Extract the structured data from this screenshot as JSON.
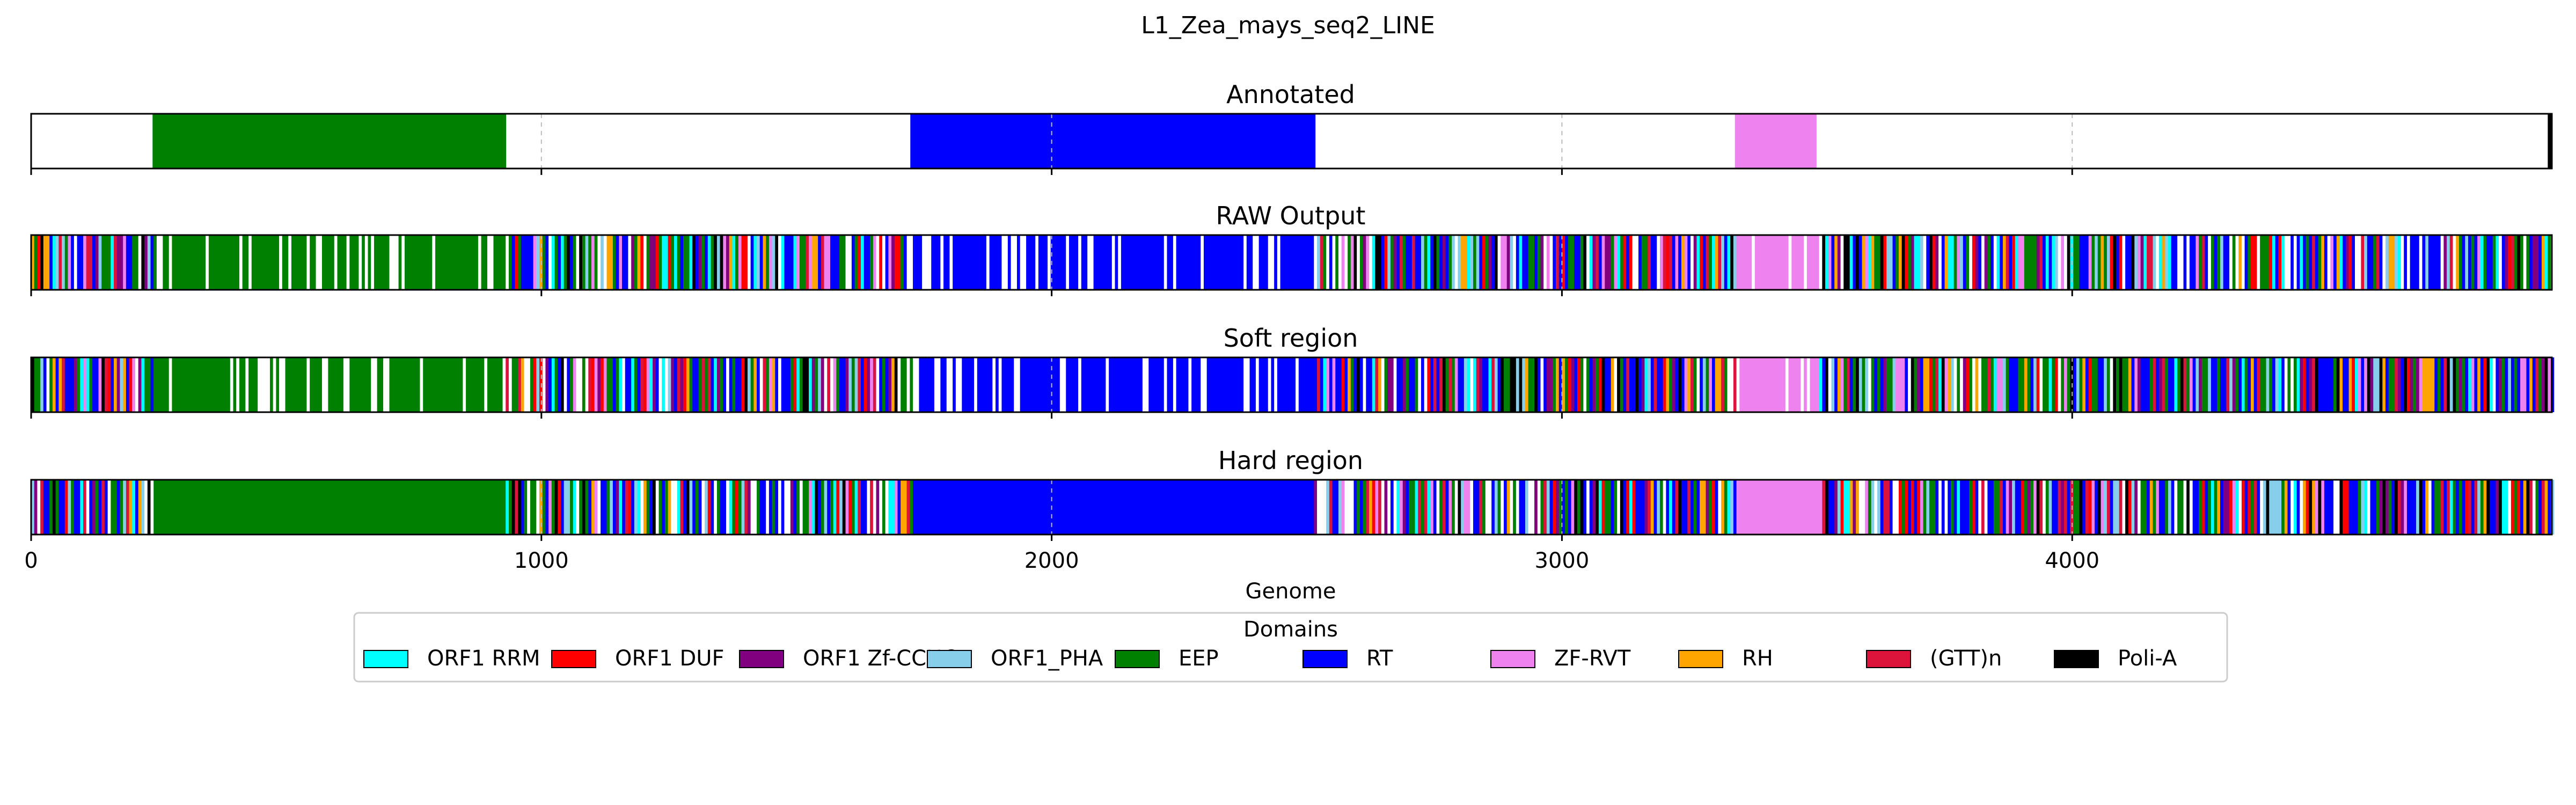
{
  "chart_data": {
    "type": "genome-track",
    "title": "L1_Zea_mays_seq2_LINE",
    "xlabel": "Genome",
    "xlim": [
      0,
      4940
    ],
    "xticks": [
      0,
      1000,
      2000,
      3000,
      4000
    ],
    "xtick_labels": [
      "0",
      "1000",
      "2000",
      "3000",
      "4000"
    ],
    "dashed_vertical_guides": [
      1000,
      2000,
      3000,
      4000
    ],
    "legend": {
      "title": "Domains",
      "placement": "lower-center",
      "entries": [
        {
          "label": "ORF1 RRM",
          "color": "#00ffff"
        },
        {
          "label": "ORF1 DUF",
          "color": "#ff0000"
        },
        {
          "label": "ORF1 Zf-CCHC",
          "color": "#800080"
        },
        {
          "label": "ORF1_PHA",
          "color": "#87ceeb"
        },
        {
          "label": "EEP",
          "color": "#008000"
        },
        {
          "label": "RT",
          "color": "#0000ff"
        },
        {
          "label": "ZF-RVT",
          "color": "#ee82ee"
        },
        {
          "label": "RH",
          "color": "#ffa500"
        },
        {
          "label": "(GTT)n",
          "color": "#dc143c"
        },
        {
          "label": "Poli-A",
          "color": "#000000"
        }
      ]
    },
    "tracks": [
      {
        "title": "Annotated",
        "segments": [
          {
            "start": 238,
            "end": 931,
            "domain": "EEP"
          },
          {
            "start": 1723,
            "end": 2517,
            "domain": "RT"
          },
          {
            "start": 3339,
            "end": 3499,
            "domain": "ZF-RVT"
          },
          {
            "start": 4932,
            "end": 4940,
            "domain": "Poli-A"
          }
        ]
      },
      {
        "title": "RAW Output",
        "pattern": "raw",
        "segments": [
          {
            "start": 238,
            "end": 931,
            "domain": "EEP",
            "fill": "striped"
          },
          {
            "start": 1723,
            "end": 2517,
            "domain": "RT",
            "fill": "striped"
          },
          {
            "start": 3339,
            "end": 3499,
            "domain": "ZF-RVT",
            "fill": "striped"
          }
        ]
      },
      {
        "title": "Soft region",
        "pattern": "soft",
        "segments": [
          {
            "start": 238,
            "end": 925,
            "domain": "EEP",
            "fill": "striped"
          },
          {
            "start": 1723,
            "end": 2517,
            "domain": "RT",
            "fill": "striped"
          },
          {
            "start": 3339,
            "end": 3499,
            "domain": "ZF-RVT",
            "fill": "striped"
          }
        ]
      },
      {
        "title": "Hard region",
        "pattern": "hard",
        "segments": [
          {
            "start": 235,
            "end": 925,
            "domain": "EEP",
            "fill": "solid"
          },
          {
            "start": 1723,
            "end": 2510,
            "domain": "RT",
            "fill": "solid"
          },
          {
            "start": 3339,
            "end": 3499,
            "domain": "ZF-RVT",
            "fill": "solid"
          }
        ]
      }
    ]
  }
}
